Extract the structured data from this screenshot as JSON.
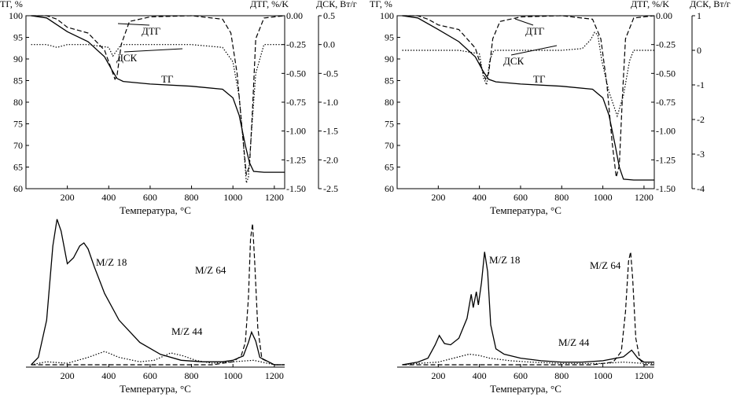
{
  "chart_data": [
    {
      "type": "line",
      "title": "",
      "panel": "top-left",
      "xlabel": "Температура, °C",
      "ylabel_left": "ТГ, %",
      "ylabel_right1": "ДТГ, %/K",
      "ylabel_right2": "ДСК, Вт/г",
      "xlim": [
        0,
        1250
      ],
      "xticks": [
        200,
        400,
        600,
        800,
        1000,
        1200
      ],
      "ylim": [
        60,
        100
      ],
      "yticks": [
        60,
        65,
        70,
        75,
        80,
        85,
        90,
        95,
        100
      ],
      "y2lim": [
        -1.5,
        0.0
      ],
      "y2ticks": [
        "0.00",
        "-0.25",
        "-0.50",
        "-0.75",
        "-1.00",
        "-1.25",
        "-1.50"
      ],
      "y3lim": [
        -2.5,
        0.5
      ],
      "y3ticks": [
        "0.5",
        "0.0",
        "-0.5",
        "-1.0",
        "-1.5",
        "-2.0",
        "-2.5"
      ],
      "labels": [
        "ДТГ",
        "ДСК",
        "ТГ"
      ],
      "series": [
        {
          "name": "ТГ",
          "style": "solid",
          "axis": "tg",
          "x": [
            25,
            100,
            200,
            300,
            380,
            415,
            440,
            470,
            600,
            800,
            950,
            1000,
            1030,
            1060,
            1080,
            1100,
            1150,
            1250
          ],
          "y": [
            100,
            99.5,
            96.3,
            94,
            90.5,
            87.5,
            85.5,
            84.8,
            84.2,
            83.7,
            83,
            81,
            77,
            70,
            66,
            64,
            63.8,
            63.8
          ]
        },
        {
          "name": "ДТГ",
          "style": "dashed",
          "axis": "dtg",
          "x": [
            25,
            100,
            150,
            200,
            300,
            380,
            410,
            430,
            440,
            460,
            500,
            600,
            800,
            950,
            990,
            1020,
            1045,
            1065,
            1080,
            1095,
            1110,
            1150,
            1250
          ],
          "y": [
            0,
            0,
            -0.03,
            -0.1,
            -0.15,
            -0.3,
            -0.45,
            -0.55,
            -0.52,
            -0.25,
            -0.05,
            -0.01,
            0,
            -0.03,
            -0.15,
            -0.5,
            -1.0,
            -1.38,
            -1.3,
            -0.8,
            -0.2,
            -0.02,
            0
          ]
        },
        {
          "name": "ДСК",
          "style": "dotted",
          "axis": "dsc",
          "x": [
            25,
            100,
            150,
            200,
            300,
            400,
            420,
            440,
            460,
            500,
            800,
            950,
            1000,
            1030,
            1050,
            1065,
            1075,
            1090,
            1110,
            1150,
            1250
          ],
          "y": [
            0,
            0,
            -0.05,
            0,
            0,
            -0.05,
            -0.2,
            -0.1,
            0,
            0,
            0,
            -0.05,
            -0.3,
            -0.9,
            -1.7,
            -2.4,
            -2.3,
            -1.5,
            -0.5,
            0,
            0
          ]
        }
      ]
    },
    {
      "type": "line",
      "title": "",
      "panel": "top-right",
      "xlabel": "Температура, °C",
      "ylabel_left": "ТГ, %",
      "ylabel_right1": "ДТГ, %/K",
      "ylabel_right2": "ДСК, Вт/г",
      "xlim": [
        0,
        1250
      ],
      "xticks": [
        200,
        400,
        600,
        800,
        1000,
        1200
      ],
      "ylim": [
        60,
        100
      ],
      "yticks": [
        60,
        65,
        70,
        75,
        80,
        85,
        90,
        95,
        100
      ],
      "y2lim": [
        -1.5,
        0.0
      ],
      "y2ticks": [
        "0.00",
        "-0.25",
        "-0.50",
        "-0.75",
        "-1.00",
        "-1.25",
        "-1.50"
      ],
      "y3lim": [
        -4,
        1
      ],
      "y3ticks": [
        "1",
        "0",
        "-1",
        "-2",
        "-3",
        "-4"
      ],
      "labels": [
        "ДТГ",
        "ДСК",
        "ТГ"
      ],
      "series": [
        {
          "name": "ТГ",
          "style": "solid",
          "axis": "tg",
          "x": [
            25,
            100,
            200,
            300,
            380,
            420,
            445,
            480,
            600,
            800,
            950,
            1000,
            1030,
            1060,
            1080,
            1100,
            1150,
            1250
          ],
          "y": [
            100,
            99.5,
            96.8,
            94,
            90.5,
            87,
            85.3,
            84.7,
            84.2,
            83.7,
            83,
            81,
            77,
            70,
            65,
            62.2,
            62,
            62
          ]
        },
        {
          "name": "ДТГ",
          "style": "dashed",
          "axis": "dtg",
          "x": [
            25,
            100,
            150,
            200,
            300,
            380,
            410,
            430,
            445,
            465,
            500,
            600,
            800,
            950,
            990,
            1020,
            1045,
            1065,
            1080,
            1095,
            1110,
            1150,
            1250
          ],
          "y": [
            0,
            0,
            -0.03,
            -0.08,
            -0.12,
            -0.28,
            -0.45,
            -0.55,
            -0.5,
            -0.2,
            -0.05,
            -0.01,
            0,
            -0.03,
            -0.2,
            -0.6,
            -1.1,
            -1.4,
            -1.3,
            -0.7,
            -0.2,
            -0.02,
            0
          ]
        },
        {
          "name": "ДСК",
          "style": "dotted",
          "axis": "dsc",
          "x": [
            25,
            100,
            200,
            300,
            400,
            420,
            435,
            450,
            470,
            600,
            800,
            900,
            940,
            960,
            975,
            995,
            1030,
            1070,
            1100,
            1130,
            1150,
            1250
          ],
          "y": [
            0,
            0,
            0,
            0,
            -0.1,
            -0.8,
            -1.0,
            -0.3,
            0,
            0,
            0,
            0.05,
            0.3,
            0.52,
            0.45,
            -0.3,
            -1.2,
            -1.9,
            -1.3,
            -0.3,
            0,
            0
          ]
        }
      ]
    },
    {
      "type": "line",
      "title": "",
      "panel": "bottom-left",
      "xlabel": "Температура, °C",
      "xlim": [
        0,
        1250
      ],
      "xticks": [
        200,
        400,
        600,
        800,
        1000,
        1200
      ],
      "ylim": [
        0,
        1
      ],
      "series": [
        {
          "name": "M/Z 18",
          "style": "solid",
          "x": [
            25,
            60,
            100,
            130,
            150,
            170,
            200,
            230,
            260,
            280,
            300,
            330,
            380,
            450,
            550,
            650,
            750,
            850,
            950,
            1000,
            1050,
            1075,
            1090,
            1110,
            1130,
            1200,
            1250
          ],
          "y": [
            0,
            0.05,
            0.3,
            0.8,
            0.98,
            0.9,
            0.68,
            0.72,
            0.8,
            0.82,
            0.78,
            0.66,
            0.48,
            0.3,
            0.15,
            0.07,
            0.03,
            0.02,
            0.02,
            0.03,
            0.06,
            0.15,
            0.22,
            0.16,
            0.05,
            0,
            0
          ]
        },
        {
          "name": "M/Z 44",
          "style": "dotted",
          "x": [
            25,
            100,
            200,
            300,
            380,
            450,
            550,
            620,
            700,
            760,
            820,
            900,
            1000,
            1100,
            1200,
            1250
          ],
          "y": [
            0,
            0.02,
            0.01,
            0.05,
            0.09,
            0.05,
            0.02,
            0.03,
            0.08,
            0.06,
            0.03,
            0.01,
            0.02,
            0.03,
            0,
            0
          ]
        },
        {
          "name": "M/Z 64",
          "style": "dashed",
          "x": [
            25,
            900,
            1000,
            1040,
            1060,
            1075,
            1085,
            1095,
            1105,
            1120,
            1140,
            1200,
            1250
          ],
          "y": [
            0,
            0,
            0.02,
            0.06,
            0.15,
            0.45,
            0.85,
            0.95,
            0.7,
            0.25,
            0.04,
            0,
            0
          ]
        }
      ],
      "labels": [
        "M/Z 18",
        "M/Z 44",
        "M/Z 64"
      ]
    },
    {
      "type": "line",
      "title": "",
      "panel": "bottom-right",
      "xlabel": "Температура, °C",
      "xlim": [
        0,
        1250
      ],
      "xticks": [
        200,
        400,
        600,
        800,
        1000,
        1200
      ],
      "ylim": [
        0,
        1
      ],
      "series": [
        {
          "name": "M/Z 18",
          "style": "solid",
          "x": [
            25,
            100,
            150,
            185,
            205,
            230,
            260,
            300,
            340,
            360,
            370,
            385,
            395,
            410,
            425,
            440,
            455,
            480,
            520,
            600,
            700,
            800,
            900,
            1000,
            1100,
            1140,
            1170,
            1200,
            1250
          ],
          "y": [
            0,
            0.02,
            0.05,
            0.15,
            0.22,
            0.16,
            0.15,
            0.2,
            0.35,
            0.53,
            0.43,
            0.55,
            0.45,
            0.62,
            0.85,
            0.7,
            0.3,
            0.12,
            0.08,
            0.05,
            0.03,
            0.02,
            0.02,
            0.03,
            0.06,
            0.11,
            0.05,
            0.02,
            0.02
          ]
        },
        {
          "name": "M/Z 44",
          "style": "dotted",
          "x": [
            25,
            100,
            200,
            300,
            350,
            400,
            450,
            550,
            650,
            800,
            1000,
            1100,
            1200,
            1250
          ],
          "y": [
            0,
            0.01,
            0.02,
            0.06,
            0.08,
            0.07,
            0.05,
            0.03,
            0.02,
            0.01,
            0.01,
            0.02,
            0.01,
            0.01
          ]
        },
        {
          "name": "M/Z 64",
          "style": "dashed",
          "x": [
            25,
            950,
            1050,
            1090,
            1110,
            1125,
            1135,
            1145,
            1160,
            1180,
            1200,
            1250
          ],
          "y": [
            0,
            0,
            0.02,
            0.1,
            0.4,
            0.78,
            0.85,
            0.65,
            0.2,
            0.04,
            0,
            0
          ]
        }
      ],
      "labels": [
        "M/Z 18",
        "M/Z 44",
        "M/Z 64"
      ]
    }
  ]
}
